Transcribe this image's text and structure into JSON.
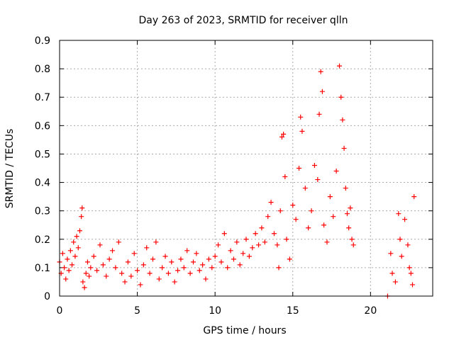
{
  "chart_data": {
    "type": "scatter",
    "title": "Day 263 of 2023, SRMTID for receiver qlln",
    "xlabel": "GPS time / hours",
    "ylabel": "SRMTID / TECUs",
    "xlim": [
      0,
      24
    ],
    "ylim": [
      0,
      0.9
    ],
    "xticks": [
      0,
      5,
      10,
      15,
      20
    ],
    "yticks": [
      0,
      0.1,
      0.2,
      0.3,
      0.4,
      0.5,
      0.6,
      0.7,
      0.8,
      0.9
    ],
    "grid": true,
    "marker": "+",
    "color": "#ff0000",
    "series": [
      {
        "name": "SRMTID",
        "points": [
          [
            0.0,
            0.12
          ],
          [
            0.1,
            0.08
          ],
          [
            0.2,
            0.15
          ],
          [
            0.3,
            0.1
          ],
          [
            0.4,
            0.06
          ],
          [
            0.5,
            0.13
          ],
          [
            0.6,
            0.09
          ],
          [
            0.7,
            0.16
          ],
          [
            0.8,
            0.11
          ],
          [
            0.9,
            0.19
          ],
          [
            1.0,
            0.14
          ],
          [
            1.1,
            0.21
          ],
          [
            1.2,
            0.17
          ],
          [
            1.3,
            0.23
          ],
          [
            1.4,
            0.28
          ],
          [
            1.45,
            0.31
          ],
          [
            1.5,
            0.05
          ],
          [
            1.6,
            0.03
          ],
          [
            1.7,
            0.08
          ],
          [
            1.8,
            0.12
          ],
          [
            1.9,
            0.07
          ],
          [
            2.0,
            0.1
          ],
          [
            2.2,
            0.14
          ],
          [
            2.4,
            0.09
          ],
          [
            2.6,
            0.18
          ],
          [
            2.8,
            0.11
          ],
          [
            3.0,
            0.07
          ],
          [
            3.2,
            0.13
          ],
          [
            3.4,
            0.16
          ],
          [
            3.6,
            0.1
          ],
          [
            3.8,
            0.19
          ],
          [
            4.0,
            0.08
          ],
          [
            4.2,
            0.05
          ],
          [
            4.4,
            0.12
          ],
          [
            4.6,
            0.07
          ],
          [
            4.8,
            0.15
          ],
          [
            5.0,
            0.09
          ],
          [
            5.2,
            0.04
          ],
          [
            5.4,
            0.11
          ],
          [
            5.6,
            0.17
          ],
          [
            5.8,
            0.08
          ],
          [
            6.0,
            0.13
          ],
          [
            6.2,
            0.19
          ],
          [
            6.4,
            0.06
          ],
          [
            6.6,
            0.1
          ],
          [
            6.8,
            0.14
          ],
          [
            7.0,
            0.08
          ],
          [
            7.2,
            0.12
          ],
          [
            7.4,
            0.05
          ],
          [
            7.6,
            0.09
          ],
          [
            7.8,
            0.13
          ],
          [
            8.0,
            0.1
          ],
          [
            8.2,
            0.16
          ],
          [
            8.4,
            0.08
          ],
          [
            8.6,
            0.12
          ],
          [
            8.8,
            0.15
          ],
          [
            9.0,
            0.09
          ],
          [
            9.2,
            0.11
          ],
          [
            9.4,
            0.06
          ],
          [
            9.6,
            0.13
          ],
          [
            9.8,
            0.1
          ],
          [
            10.0,
            0.14
          ],
          [
            10.2,
            0.18
          ],
          [
            10.4,
            0.12
          ],
          [
            10.6,
            0.22
          ],
          [
            10.8,
            0.1
          ],
          [
            11.0,
            0.16
          ],
          [
            11.2,
            0.13
          ],
          [
            11.4,
            0.19
          ],
          [
            11.6,
            0.11
          ],
          [
            11.8,
            0.15
          ],
          [
            12.0,
            0.2
          ],
          [
            12.2,
            0.14
          ],
          [
            12.4,
            0.17
          ],
          [
            12.6,
            0.22
          ],
          [
            12.8,
            0.18
          ],
          [
            13.0,
            0.24
          ],
          [
            13.2,
            0.19
          ],
          [
            13.4,
            0.28
          ],
          [
            13.6,
            0.33
          ],
          [
            13.8,
            0.22
          ],
          [
            14.0,
            0.18
          ],
          [
            14.1,
            0.1
          ],
          [
            14.2,
            0.3
          ],
          [
            14.3,
            0.56
          ],
          [
            14.4,
            0.57
          ],
          [
            14.5,
            0.42
          ],
          [
            14.6,
            0.2
          ],
          [
            14.8,
            0.13
          ],
          [
            15.0,
            0.32
          ],
          [
            15.2,
            0.27
          ],
          [
            15.4,
            0.45
          ],
          [
            15.5,
            0.63
          ],
          [
            15.6,
            0.58
          ],
          [
            15.8,
            0.38
          ],
          [
            16.0,
            0.24
          ],
          [
            16.2,
            0.3
          ],
          [
            16.4,
            0.46
          ],
          [
            16.6,
            0.41
          ],
          [
            16.7,
            0.64
          ],
          [
            16.8,
            0.79
          ],
          [
            16.9,
            0.72
          ],
          [
            17.0,
            0.25
          ],
          [
            17.2,
            0.19
          ],
          [
            17.4,
            0.35
          ],
          [
            17.6,
            0.28
          ],
          [
            17.8,
            0.44
          ],
          [
            18.0,
            0.81
          ],
          [
            18.1,
            0.7
          ],
          [
            18.2,
            0.62
          ],
          [
            18.3,
            0.52
          ],
          [
            18.4,
            0.38
          ],
          [
            18.5,
            0.29
          ],
          [
            18.6,
            0.24
          ],
          [
            18.7,
            0.31
          ],
          [
            18.8,
            0.2
          ],
          [
            18.9,
            0.18
          ],
          [
            21.1,
            0.0
          ],
          [
            21.3,
            0.15
          ],
          [
            21.4,
            0.08
          ],
          [
            21.6,
            0.05
          ],
          [
            21.8,
            0.29
          ],
          [
            21.9,
            0.2
          ],
          [
            22.0,
            0.14
          ],
          [
            22.2,
            0.27
          ],
          [
            22.4,
            0.18
          ],
          [
            22.5,
            0.1
          ],
          [
            22.6,
            0.08
          ],
          [
            22.7,
            0.04
          ],
          [
            22.8,
            0.35
          ]
        ]
      }
    ]
  }
}
